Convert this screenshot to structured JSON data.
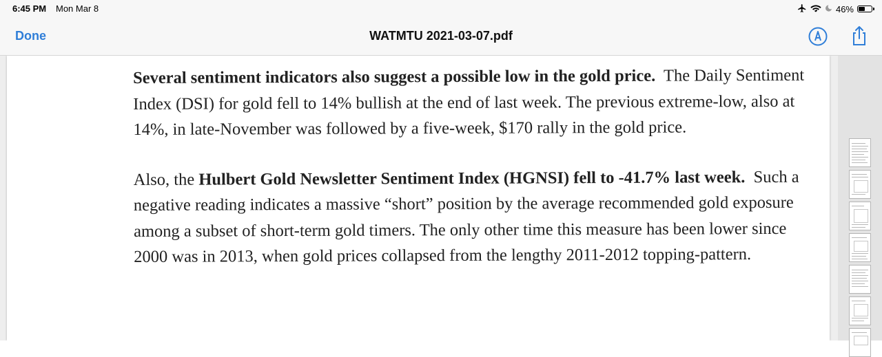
{
  "status_bar": {
    "time": "6:45 PM",
    "date": "Mon Mar 8",
    "battery_percent": "46%",
    "icons": [
      "airplane-icon",
      "wifi-icon",
      "moon-icon",
      "battery-icon"
    ]
  },
  "nav": {
    "done_label": "Done",
    "title": "WATMTU 2021-03-07.pdf",
    "accent_color": "#2f7ed8",
    "icons": [
      "markup-icon",
      "share-icon"
    ]
  },
  "document": {
    "para1": {
      "bold": "Several sentiment indicators also suggest a possible low in the gold price.",
      "rest": "The Daily Sentiment Index (DSI) for gold fell to 14% bullish at the end of last week.  The previous extreme-low, also at 14%, in late-November was followed by a five-week, $170 rally in the gold price."
    },
    "para2": {
      "lead": "Also, the",
      "bold": "Hulbert Gold Newsletter Sentiment Index (HGNSI) fell to -41.7% last week.",
      "rest": "Such a negative reading indicates a massive “short” position by the average recommended gold exposure among a subset of short-term gold timers. The only other time this measure has been lower since 2000 was in 2013, when gold prices collapsed from the lengthy 2011-2012 topping-pattern."
    }
  },
  "thumbnails": {
    "count": 7
  }
}
